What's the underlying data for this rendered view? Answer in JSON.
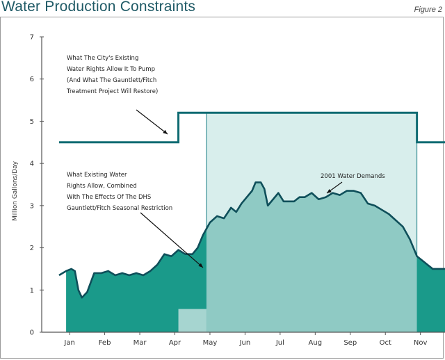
{
  "header": {
    "title": "Water Production Constraints",
    "figure_label": "Figure 2"
  },
  "chart_data": {
    "type": "area",
    "title": "Water Production Constraints",
    "xlabel": "",
    "ylabel": "Million Gallons/Day",
    "ylim": [
      0,
      7
    ],
    "yticks": [
      0,
      1,
      2,
      3,
      4,
      5,
      6,
      7
    ],
    "xlim": [
      0,
      11
    ],
    "categories": [
      "Jan",
      "Feb",
      "Mar",
      "Apr",
      "May",
      "Jun",
      "Jul",
      "Aug",
      "Sep",
      "Oct",
      "Nov"
    ],
    "grid": false,
    "colors": {
      "water_rights_line": "#0f6b72",
      "water_rights_fill": "#d8eeec",
      "restricted_fill": "#a6d5d0",
      "demand_fill": "#1a9a8a",
      "demand_line": "#0f4f5a",
      "axis": "#555555"
    },
    "series": [
      {
        "role": "existing_water_rights",
        "x": [
          0,
          3.4,
          3.4,
          10.2,
          10.2,
          11
        ],
        "values": [
          4.5,
          4.5,
          5.2,
          5.2,
          4.5,
          4.5
        ]
      },
      {
        "role": "rights_with_dhs_restriction",
        "x": [
          3.4,
          4.2,
          4.2,
          10.2
        ],
        "values": [
          0.55,
          0.55,
          1.55,
          1.55
        ]
      },
      {
        "name": "2001 Water Demands",
        "x": [
          0.0,
          0.2,
          0.35,
          0.45,
          0.55,
          0.65,
          0.8,
          1.0,
          1.2,
          1.4,
          1.6,
          1.8,
          2.0,
          2.2,
          2.4,
          2.6,
          2.8,
          3.0,
          3.2,
          3.4,
          3.6,
          3.8,
          3.95,
          4.1,
          4.3,
          4.5,
          4.7,
          4.9,
          5.05,
          5.2,
          5.35,
          5.5,
          5.6,
          5.75,
          5.85,
          5.95,
          6.1,
          6.25,
          6.4,
          6.55,
          6.7,
          6.85,
          7.0,
          7.2,
          7.4,
          7.6,
          7.8,
          8.0,
          8.2,
          8.4,
          8.6,
          8.8,
          9.0,
          9.2,
          9.4,
          9.6,
          9.8,
          10.0,
          10.2,
          10.35,
          10.5,
          10.65,
          10.8,
          11.0
        ],
        "values": [
          1.35,
          1.45,
          1.5,
          1.45,
          1.0,
          0.82,
          0.95,
          1.4,
          1.4,
          1.45,
          1.35,
          1.4,
          1.35,
          1.4,
          1.35,
          1.45,
          1.6,
          1.85,
          1.8,
          1.95,
          1.85,
          1.85,
          2.0,
          2.3,
          2.6,
          2.75,
          2.7,
          2.95,
          2.85,
          3.05,
          3.2,
          3.35,
          3.55,
          3.55,
          3.4,
          3.0,
          3.15,
          3.3,
          3.1,
          3.1,
          3.1,
          3.2,
          3.2,
          3.3,
          3.15,
          3.2,
          3.3,
          3.25,
          3.35,
          3.35,
          3.3,
          3.05,
          3.0,
          2.9,
          2.8,
          2.65,
          2.5,
          2.2,
          1.8,
          1.7,
          1.6,
          1.5,
          1.5,
          1.5
        ]
      }
    ],
    "annotations": [
      {
        "id": "rights",
        "lines": [
          "What The City's Existing",
          "Water Rights Allow It To Pump",
          "(And What The Gauntlett/Fitch",
          "Treatment Project Will Restore)"
        ]
      },
      {
        "id": "restriction",
        "lines": [
          "What Existing Water",
          "Rights Allow, Combined",
          "With The Effects Of The DHS",
          "Gauntlett/Fitch Seasonal Restriction"
        ]
      },
      {
        "id": "demand",
        "lines": [
          "2001 Water Demands"
        ]
      }
    ]
  }
}
